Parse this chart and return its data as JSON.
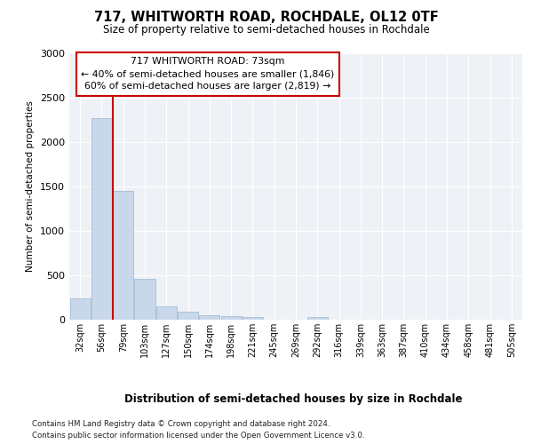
{
  "title": "717, WHITWORTH ROAD, ROCHDALE, OL12 0TF",
  "subtitle": "Size of property relative to semi-detached houses in Rochdale",
  "xlabel": "Distribution of semi-detached houses by size in Rochdale",
  "ylabel": "Number of semi-detached properties",
  "footer_line1": "Contains HM Land Registry data © Crown copyright and database right 2024.",
  "footer_line2": "Contains public sector information licensed under the Open Government Licence v3.0.",
  "property_label": "717 WHITWORTH ROAD: 73sqm",
  "smaller_pct": 40,
  "smaller_count": 1846,
  "larger_pct": 60,
  "larger_count": 2819,
  "bin_labels": [
    "32sqm",
    "56sqm",
    "79sqm",
    "103sqm",
    "127sqm",
    "150sqm",
    "174sqm",
    "198sqm",
    "221sqm",
    "245sqm",
    "269sqm",
    "292sqm",
    "316sqm",
    "339sqm",
    "363sqm",
    "387sqm",
    "410sqm",
    "434sqm",
    "458sqm",
    "481sqm",
    "505sqm"
  ],
  "bar_heights": [
    240,
    2270,
    1450,
    460,
    155,
    90,
    50,
    38,
    30,
    0,
    0,
    28,
    0,
    0,
    0,
    0,
    0,
    0,
    0,
    0,
    0
  ],
  "property_bin_index": 2,
  "bar_color": "#c8d8ea",
  "bar_edge_color": "#9ab5cc",
  "line_color": "#cc0000",
  "annotation_box_color": "#cc0000",
  "bg_color": "#eef2f7",
  "ylim": [
    0,
    3000
  ],
  "yticks": [
    0,
    500,
    1000,
    1500,
    2000,
    2500,
    3000
  ]
}
